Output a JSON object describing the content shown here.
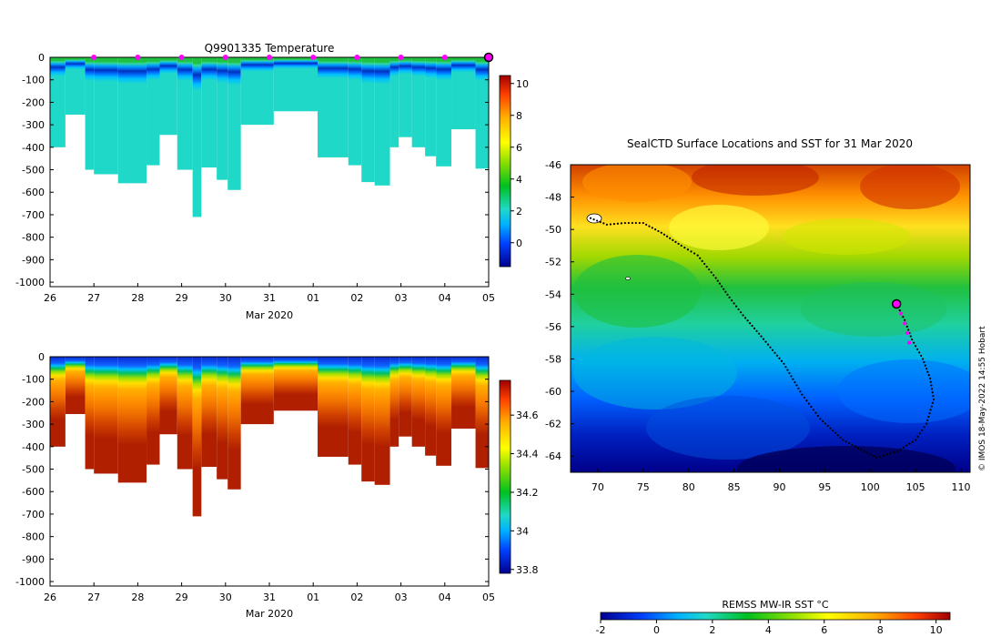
{
  "chart_data": [
    {
      "type": "heatmap",
      "name": "temperature-section",
      "title": "Q9901335  Temperature",
      "xlabel": "Mar 2020",
      "x_tick_labels": [
        "26",
        "27",
        "28",
        "29",
        "30",
        "31",
        "01",
        "02",
        "03",
        "04",
        "05"
      ],
      "y_tick_labels": [
        "0",
        "-100",
        "-200",
        "-300",
        "-400",
        "-500",
        "-600",
        "-700",
        "-800",
        "-900",
        "-1000"
      ],
      "ylim": [
        -1020,
        0
      ],
      "xlim_days": [
        26.0,
        36.0
      ],
      "colorbar": {
        "range": [
          -1.5,
          10.5
        ],
        "ticks": [
          "0",
          "2",
          "4",
          "6",
          "8",
          "10"
        ],
        "tick_values": [
          0,
          2,
          4,
          6,
          8,
          10
        ]
      },
      "profile_markers_day": [
        27,
        28,
        29,
        30,
        31,
        32,
        33,
        34,
        35
      ],
      "current_profile_day": 36,
      "profiles": [
        {
          "x0": 26.0,
          "x1": 26.35,
          "depth": 400
        },
        {
          "x0": 26.35,
          "x1": 26.8,
          "depth": 255
        },
        {
          "x0": 26.8,
          "x1": 27.0,
          "depth": 500
        },
        {
          "x0": 27.0,
          "x1": 27.55,
          "depth": 520
        },
        {
          "x0": 27.55,
          "x1": 28.2,
          "depth": 560
        },
        {
          "x0": 28.2,
          "x1": 28.5,
          "depth": 480
        },
        {
          "x0": 28.5,
          "x1": 28.9,
          "depth": 345
        },
        {
          "x0": 28.9,
          "x1": 29.25,
          "depth": 500
        },
        {
          "x0": 29.25,
          "x1": 29.45,
          "depth": 710
        },
        {
          "x0": 29.45,
          "x1": 29.8,
          "depth": 490
        },
        {
          "x0": 29.8,
          "x1": 30.05,
          "depth": 545
        },
        {
          "x0": 30.05,
          "x1": 30.35,
          "depth": 590
        },
        {
          "x0": 30.35,
          "x1": 31.1,
          "depth": 300
        },
        {
          "x0": 31.1,
          "x1": 32.1,
          "depth": 240
        },
        {
          "x0": 32.1,
          "x1": 32.8,
          "depth": 445
        },
        {
          "x0": 32.8,
          "x1": 33.1,
          "depth": 480
        },
        {
          "x0": 33.1,
          "x1": 33.4,
          "depth": 555
        },
        {
          "x0": 33.4,
          "x1": 33.75,
          "depth": 570
        },
        {
          "x0": 33.75,
          "x1": 33.95,
          "depth": 400
        },
        {
          "x0": 33.95,
          "x1": 34.25,
          "depth": 355
        },
        {
          "x0": 34.25,
          "x1": 34.55,
          "depth": 400
        },
        {
          "x0": 34.55,
          "x1": 34.8,
          "depth": 440
        },
        {
          "x0": 34.8,
          "x1": 35.15,
          "depth": 485
        },
        {
          "x0": 35.15,
          "x1": 35.7,
          "depth": 320
        },
        {
          "x0": 35.7,
          "x1": 36.0,
          "depth": 495
        }
      ]
    },
    {
      "type": "heatmap",
      "name": "salinity-section",
      "xlabel": "Mar 2020",
      "x_tick_labels": [
        "26",
        "27",
        "28",
        "29",
        "30",
        "31",
        "01",
        "02",
        "03",
        "04",
        "05"
      ],
      "y_tick_labels": [
        "0",
        "-100",
        "-200",
        "-300",
        "-400",
        "-500",
        "-600",
        "-700",
        "-800",
        "-900",
        "-1000"
      ],
      "ylim": [
        -1020,
        0
      ],
      "xlim_days": [
        26.0,
        36.0
      ],
      "colorbar": {
        "range": [
          33.78,
          34.78
        ],
        "ticks": [
          "33.8",
          "34",
          "34.2",
          "34.4",
          "34.6"
        ],
        "tick_values": [
          33.8,
          34.0,
          34.2,
          34.4,
          34.6
        ]
      }
    },
    {
      "type": "heatmap",
      "name": "sst-map",
      "title": "SealCTD Surface Locations and SST for 31 Mar 2020",
      "x_tick_labels": [
        "70",
        "75",
        "80",
        "85",
        "90",
        "95",
        "100",
        "105",
        "110"
      ],
      "x_tick_values": [
        70,
        75,
        80,
        85,
        90,
        95,
        100,
        105,
        110
      ],
      "y_tick_labels": [
        "-46",
        "-48",
        "-50",
        "-52",
        "-54",
        "-56",
        "-58",
        "-60",
        "-62",
        "-64"
      ],
      "y_tick_values": [
        -46,
        -48,
        -50,
        -52,
        -54,
        -56,
        -58,
        -60,
        -62,
        -64
      ],
      "xlim": [
        67.0,
        111.0
      ],
      "ylim": [
        -65.0,
        -46.0
      ],
      "colorbar": {
        "label": "REMSS MW-IR SST °C",
        "range": [
          -2,
          10.5
        ],
        "ticks": [
          "-2",
          "0",
          "2",
          "4",
          "6",
          "8",
          "10"
        ],
        "tick_values": [
          -2,
          0,
          2,
          4,
          6,
          8,
          10
        ]
      },
      "track": [
        [
          69.2,
          -49.3
        ],
        [
          71,
          -49.7
        ],
        [
          73,
          -49.6
        ],
        [
          75,
          -49.6
        ],
        [
          77,
          -50.2
        ],
        [
          79.2,
          -51.0
        ],
        [
          81,
          -51.6
        ],
        [
          83,
          -53.0
        ],
        [
          84.5,
          -54.2
        ],
        [
          86,
          -55.3
        ],
        [
          88,
          -56.6
        ],
        [
          90.5,
          -58.3
        ],
        [
          92.5,
          -60.2
        ],
        [
          94.5,
          -61.7
        ],
        [
          97,
          -63.0
        ],
        [
          99,
          -63.6
        ],
        [
          100.7,
          -64.1
        ],
        [
          103,
          -63.7
        ],
        [
          105,
          -63.0
        ],
        [
          106.2,
          -62.0
        ],
        [
          107,
          -60.5
        ],
        [
          106.6,
          -59.2
        ],
        [
          105.8,
          -58.0
        ],
        [
          104.6,
          -56.8
        ],
        [
          103.8,
          -55.6
        ],
        [
          102.9,
          -54.6
        ]
      ],
      "recent_track": [
        [
          102.9,
          -54.6
        ],
        [
          103.4,
          -55.2
        ],
        [
          103.8,
          -55.8
        ],
        [
          104.1,
          -56.4
        ],
        [
          104.3,
          -57.0
        ]
      ],
      "current_position": [
        102.9,
        -54.6
      ],
      "credit": "© IMOS 18-May-2022 14:55 Hobart"
    }
  ]
}
